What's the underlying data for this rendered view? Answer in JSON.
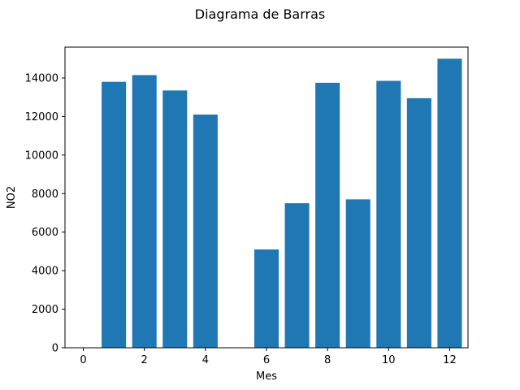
{
  "chart_data": {
    "type": "bar",
    "title": "Diagrama de Barras",
    "xlabel": "Mes",
    "ylabel": "NO2",
    "x": [
      1,
      2,
      3,
      4,
      6,
      7,
      8,
      9,
      10,
      11,
      12
    ],
    "values": [
      13800,
      14150,
      13350,
      12100,
      5100,
      7500,
      13750,
      7700,
      13850,
      12950,
      15000
    ],
    "xlim": [
      -0.6,
      12.6
    ],
    "ylim": [
      0,
      15600
    ],
    "xticks": [
      0,
      2,
      4,
      6,
      8,
      10,
      12
    ],
    "yticks": [
      0,
      2000,
      4000,
      6000,
      8000,
      10000,
      12000,
      14000
    ],
    "bar_color": "#1f77b4",
    "grid": false
  }
}
